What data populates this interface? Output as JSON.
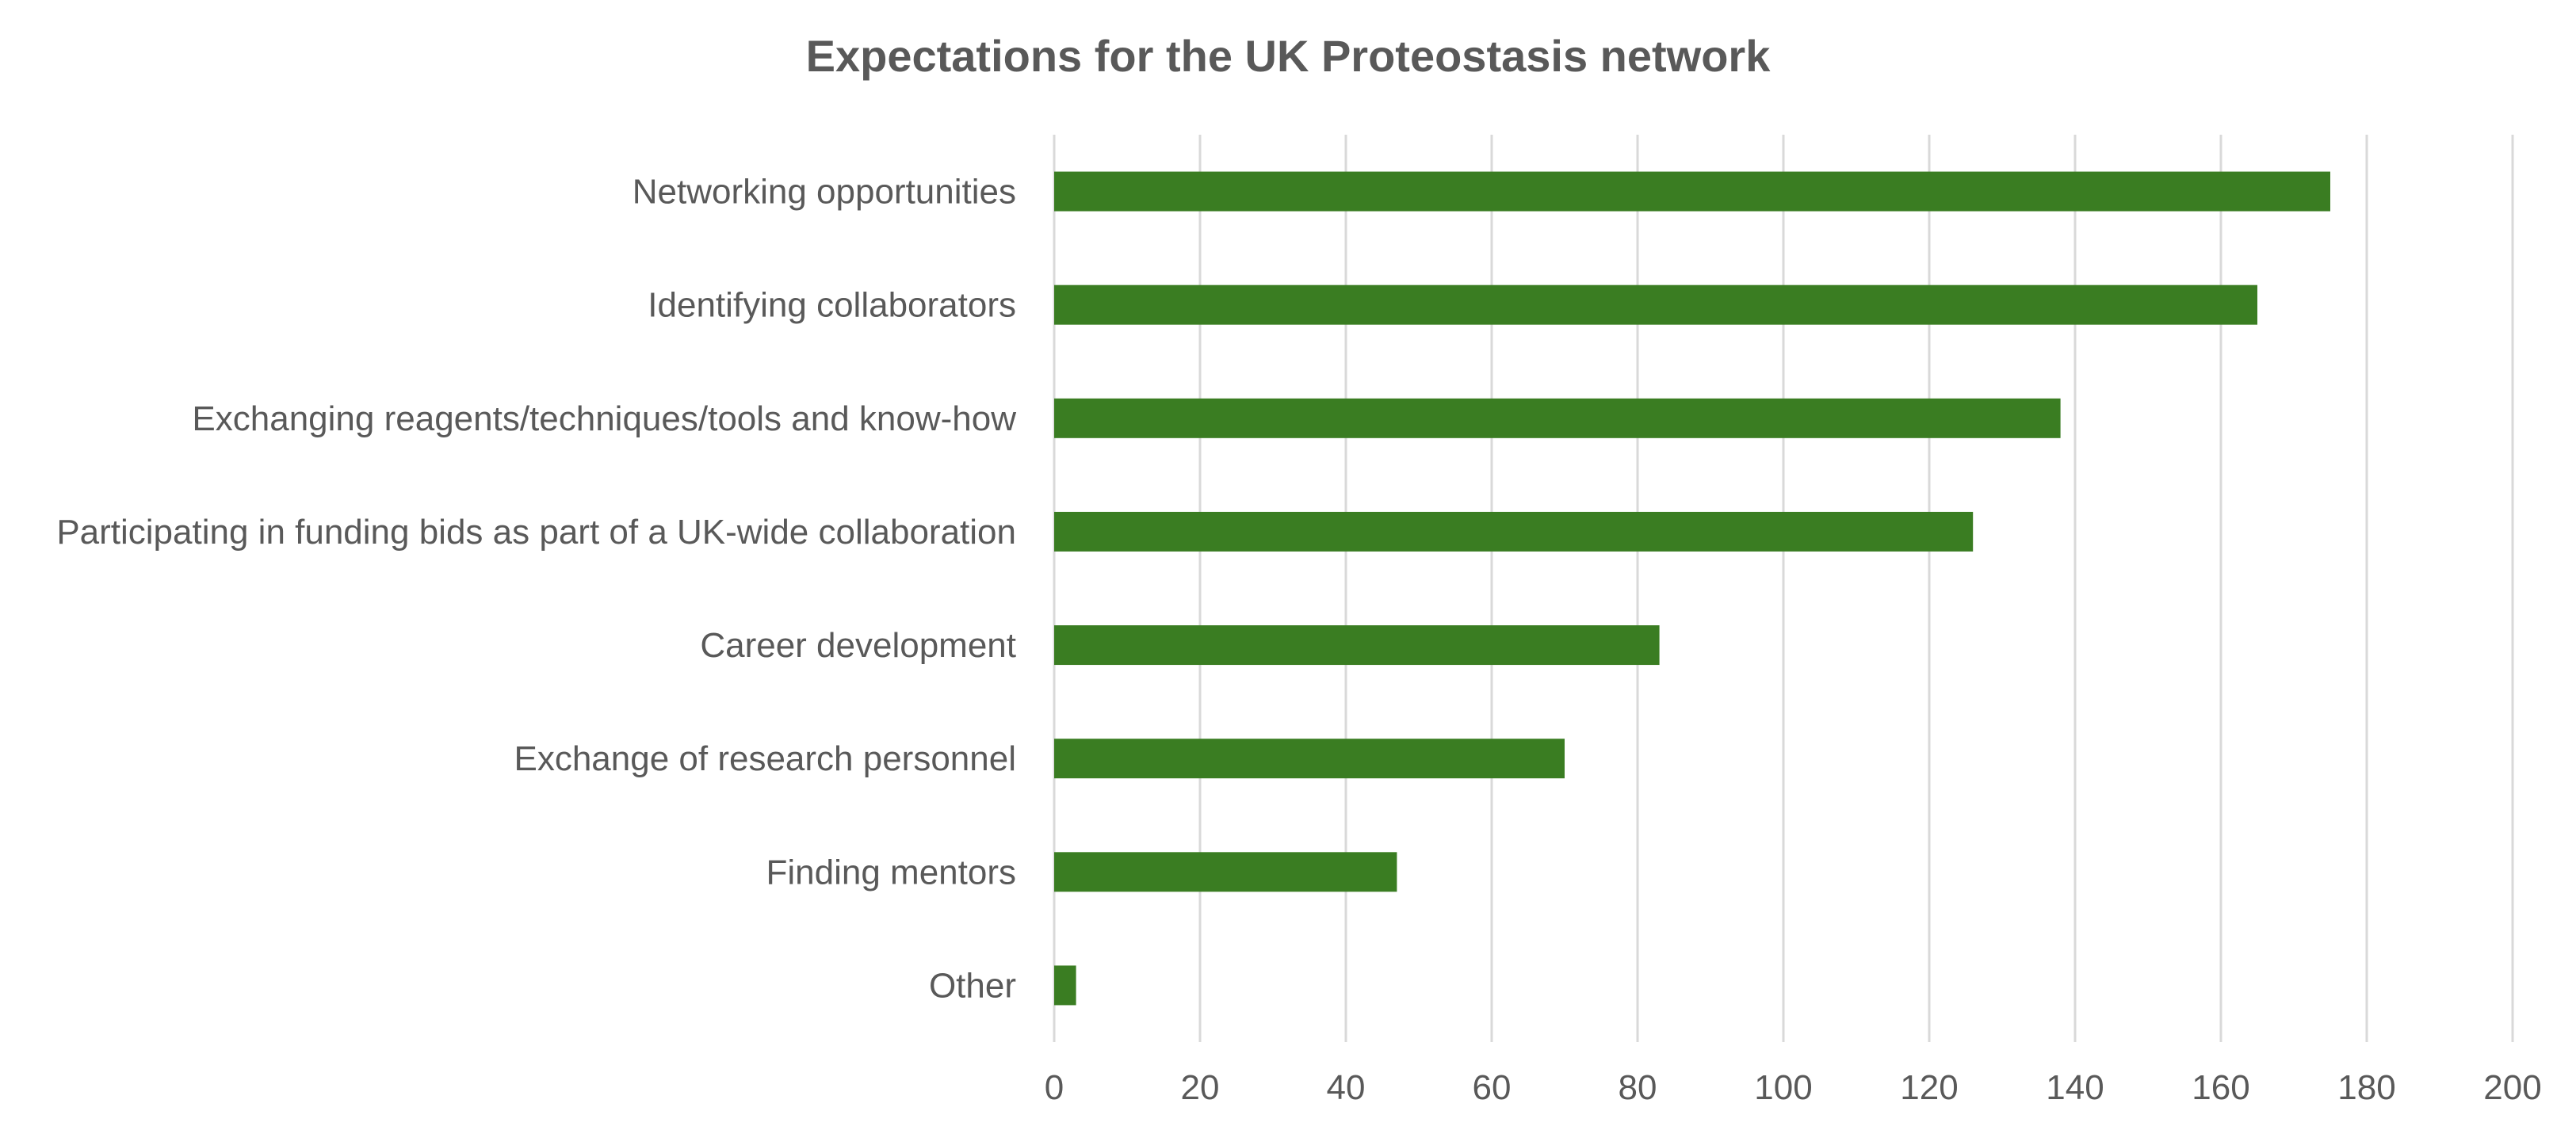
{
  "chart_data": {
    "type": "bar",
    "orientation": "horizontal",
    "title": "Expectations for the UK Proteostasis network",
    "xlabel": "",
    "ylabel": "",
    "categories": [
      "Networking opportunities",
      "Identifying collaborators",
      "Exchanging reagents/techniques/tools and know-how",
      "Participating in funding bids as part of a UK-wide collaboration",
      "Career development",
      "Exchange of research personnel",
      "Finding mentors",
      "Other"
    ],
    "values": [
      175,
      165,
      138,
      126,
      83,
      70,
      47,
      3
    ],
    "xlim": [
      0,
      200
    ],
    "xticks": [
      0,
      20,
      40,
      60,
      80,
      100,
      120,
      140,
      160,
      180,
      200
    ],
    "grid": "vertical",
    "legend": "none",
    "bar_color": "#3a7d22"
  }
}
